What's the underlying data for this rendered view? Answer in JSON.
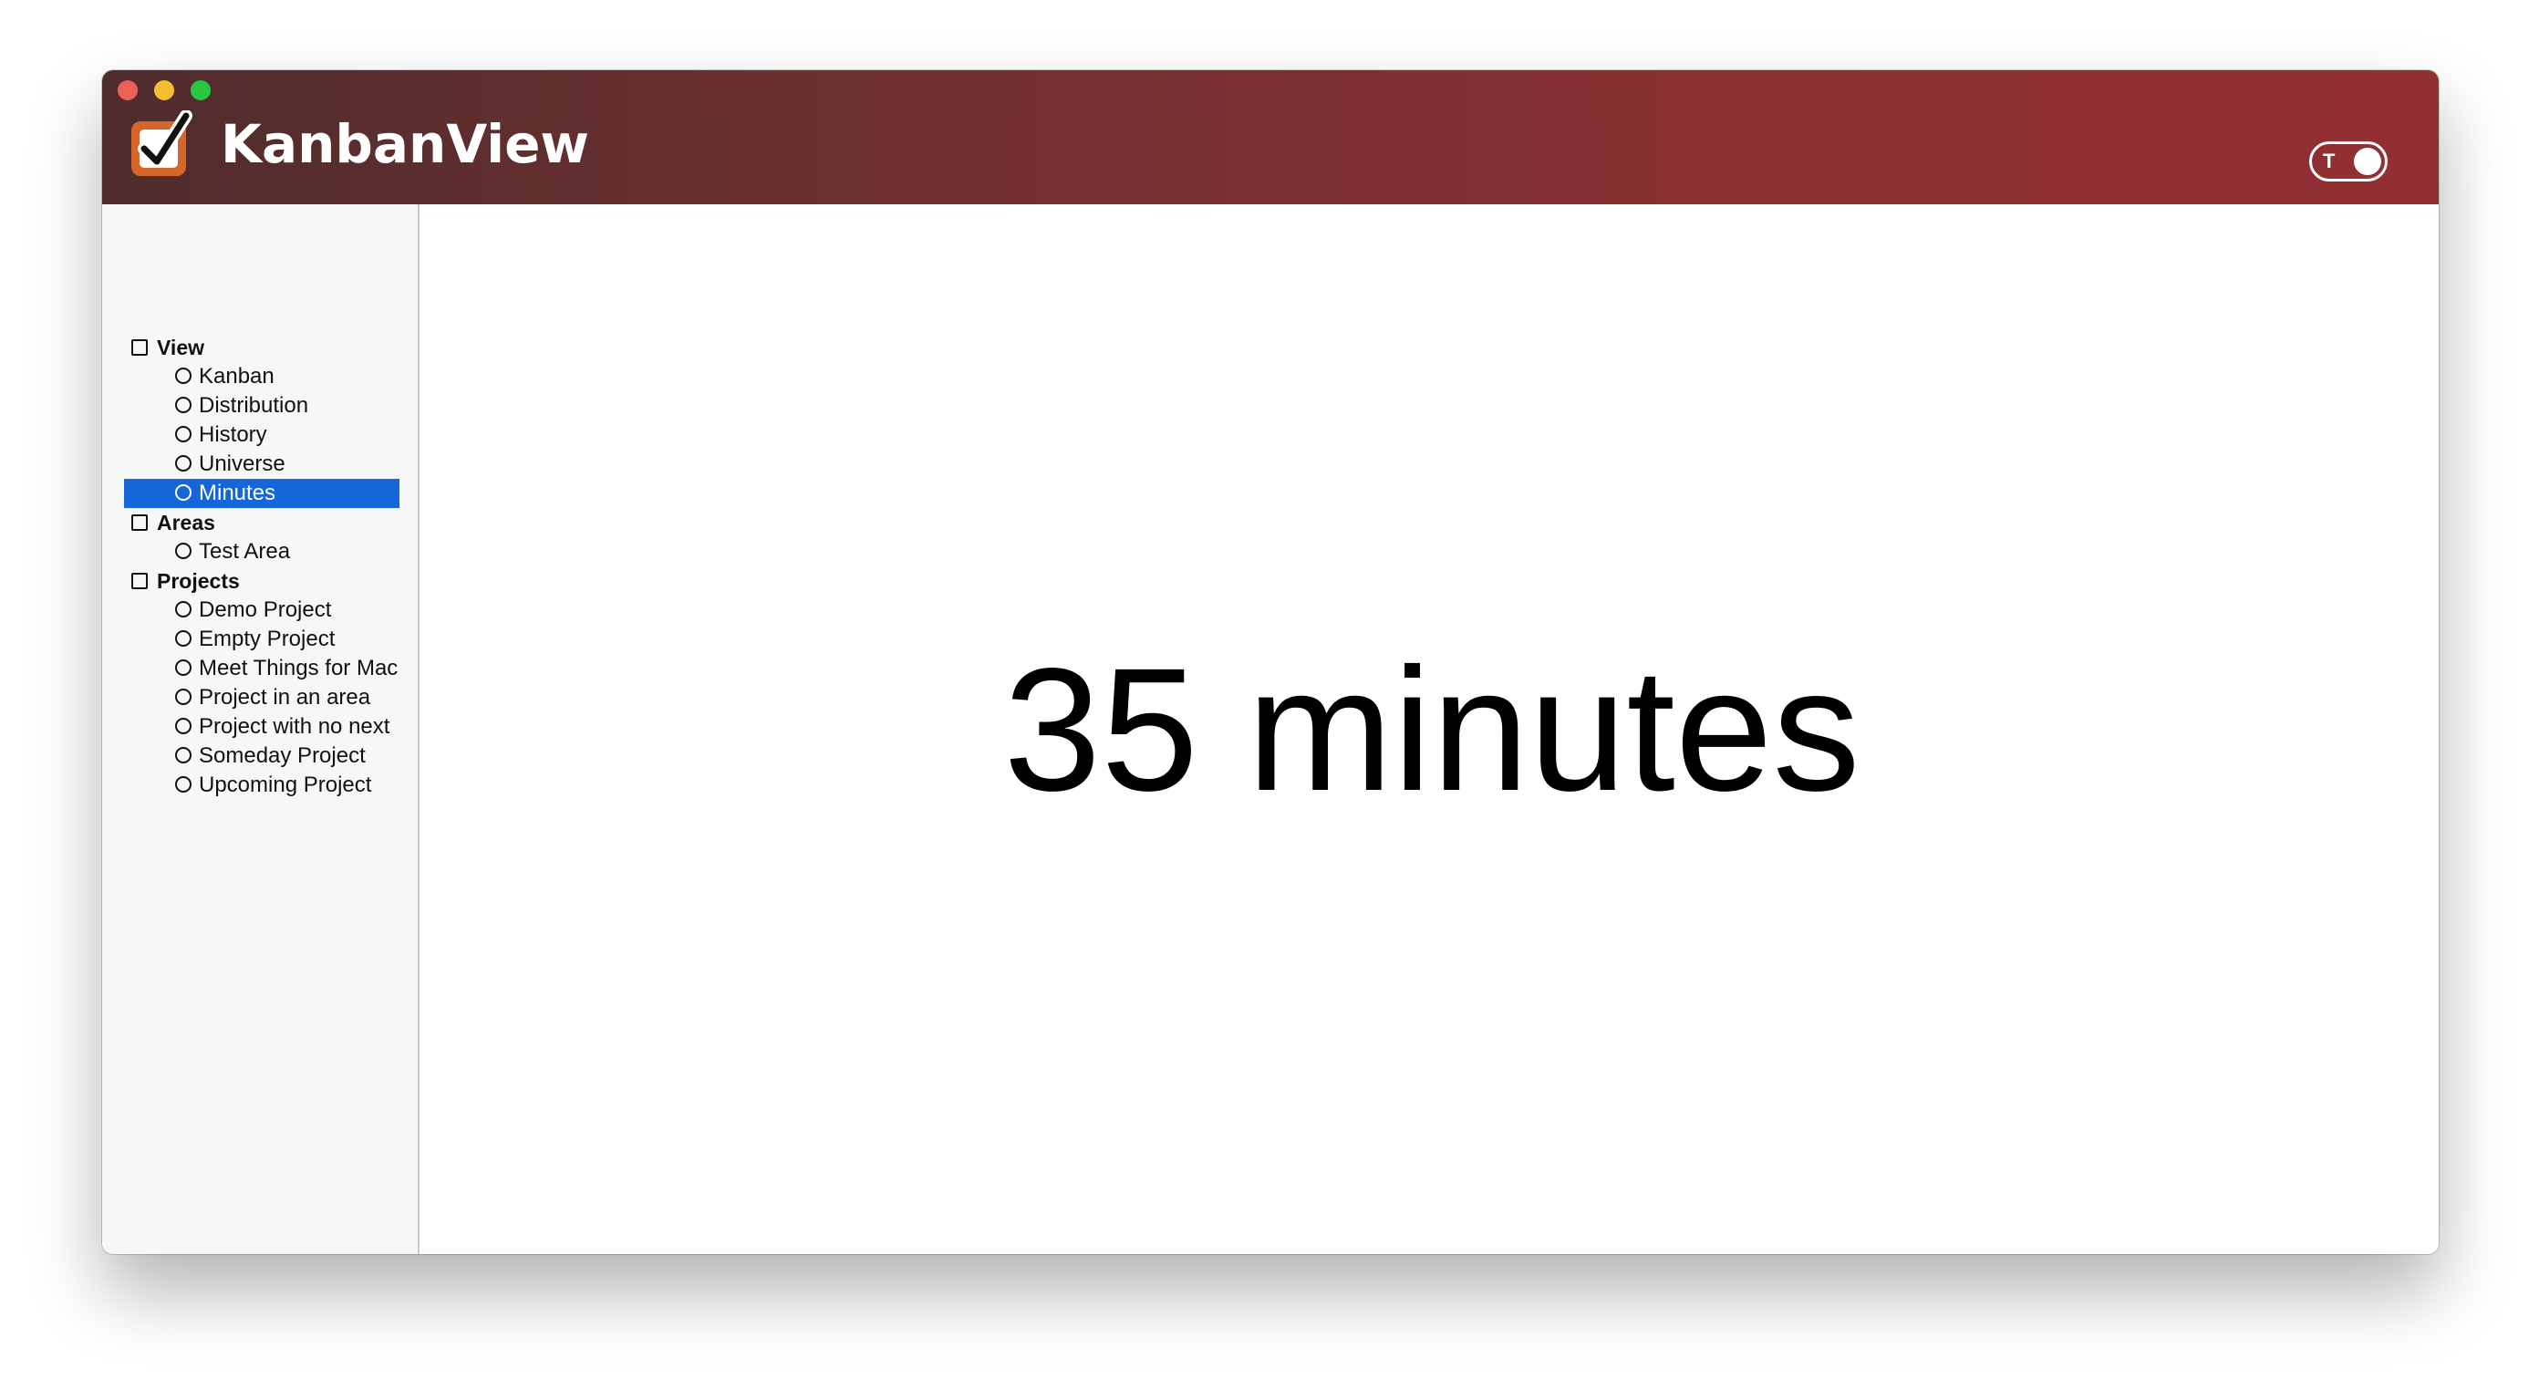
{
  "app": {
    "title": "KanbanView",
    "toggle_label": "T"
  },
  "sidebar": {
    "sections": [
      {
        "label": "View",
        "items": [
          {
            "label": "Kanban",
            "selected": false
          },
          {
            "label": "Distribution",
            "selected": false
          },
          {
            "label": "History",
            "selected": false
          },
          {
            "label": "Universe",
            "selected": false
          },
          {
            "label": "Minutes",
            "selected": true
          }
        ]
      },
      {
        "label": "Areas",
        "items": [
          {
            "label": "Test Area",
            "selected": false
          }
        ]
      },
      {
        "label": "Projects",
        "items": [
          {
            "label": "Demo Project",
            "selected": false
          },
          {
            "label": "Empty Project",
            "selected": false
          },
          {
            "label": "Meet Things for Mac",
            "selected": false
          },
          {
            "label": "Project in an area",
            "selected": false
          },
          {
            "label": "Project with no next",
            "selected": false
          },
          {
            "label": "Someday Project",
            "selected": false
          },
          {
            "label": "Upcoming Project",
            "selected": false
          }
        ]
      }
    ]
  },
  "main": {
    "value_text": "35 minutes"
  },
  "colors": {
    "titlebar_start": "#4f2c2c",
    "titlebar_end": "#922f33",
    "selection": "#1466d9",
    "logo_orange": "#d4662a"
  },
  "icons": {
    "logo": "checkbox-check-icon",
    "section": "square-outline-icon",
    "item": "circle-outline-icon"
  }
}
